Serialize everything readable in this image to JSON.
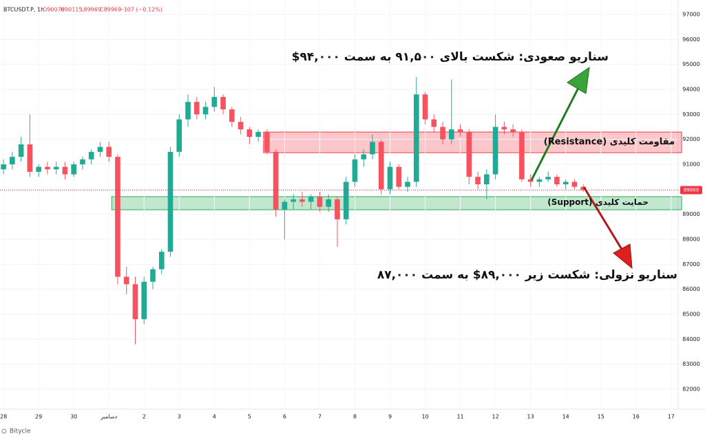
{
  "chart_data": {
    "type": "candlestick",
    "header": {
      "symbol": "BTCUSDT.P, 1h",
      "open": "O90076",
      "high": "H90115",
      "low": "L89969",
      "close": "C89969",
      "change": "−107 (−0.12%)"
    },
    "footer": "Bitycle",
    "x": [
      0,
      0.25,
      0.5,
      0.75,
      1,
      1.25,
      1.5,
      1.75,
      2,
      2.25,
      2.5,
      2.75,
      3,
      3.25,
      3.5,
      3.75,
      4,
      4.25,
      4.5,
      4.75,
      5,
      5.25,
      5.5,
      5.75,
      6,
      6.25,
      6.5,
      6.75,
      7,
      7.25,
      7.5,
      7.75,
      8,
      8.25,
      8.5,
      8.75,
      9,
      9.25,
      9.5,
      9.75,
      10,
      10.25,
      10.5,
      10.75,
      11,
      11.25,
      11.5,
      11.75,
      12,
      12.25,
      12.5,
      12.75,
      13,
      13.25,
      13.5,
      13.75,
      14,
      14.25,
      14.5,
      14.75,
      15,
      15.25,
      15.5,
      15.75,
      16,
      16.25,
      16.5
    ],
    "open": [
      90800,
      91000,
      91300,
      91800,
      90700,
      90900,
      90800,
      90900,
      90600,
      91000,
      91200,
      91500,
      91700,
      91300,
      86500,
      86200,
      84800,
      86300,
      86800,
      87500,
      91500,
      92800,
      93500,
      93000,
      93300,
      93700,
      93200,
      92700,
      92400,
      92100,
      92300,
      91500,
      89200,
      89500,
      89600,
      89500,
      89700,
      89300,
      89600,
      88800,
      90300,
      91200,
      91400,
      91900,
      90000,
      90900,
      90100,
      90300,
      93800,
      92800,
      92500,
      92000,
      92400,
      92300,
      90500,
      90200,
      90600,
      92500,
      92400,
      92300,
      90400,
      90300,
      90400,
      90500,
      90200,
      90300,
      90100
    ],
    "high": [
      91200,
      91500,
      92100,
      93000,
      91000,
      91100,
      91100,
      91100,
      91100,
      91300,
      91600,
      91900,
      91900,
      91400,
      86900,
      86500,
      86500,
      86900,
      87600,
      91700,
      93000,
      93800,
      93700,
      93500,
      94100,
      93800,
      93300,
      92900,
      92500,
      92400,
      92400,
      91600,
      89600,
      89800,
      89900,
      89800,
      89900,
      89800,
      89700,
      90500,
      91400,
      91600,
      92200,
      92000,
      91100,
      91000,
      90500,
      94500,
      93900,
      93000,
      92700,
      94400,
      92600,
      92400,
      90700,
      90800,
      93000,
      92700,
      92600,
      92400,
      90600,
      90500,
      90700,
      90600,
      90400,
      90400,
      90200
    ],
    "low": [
      90600,
      90800,
      91100,
      90500,
      90500,
      90600,
      90600,
      90400,
      90500,
      90800,
      91000,
      91300,
      91100,
      86200,
      85800,
      83800,
      84600,
      86000,
      86600,
      87300,
      91300,
      92500,
      92800,
      92800,
      93100,
      93000,
      92500,
      92200,
      91800,
      91900,
      91400,
      88900,
      88000,
      89200,
      89300,
      89200,
      89100,
      89100,
      87700,
      88600,
      90100,
      90900,
      91200,
      89800,
      89800,
      90000,
      89900,
      90100,
      92600,
      92300,
      91800,
      91800,
      92100,
      90200,
      90000,
      89600,
      90400,
      92200,
      92100,
      90300,
      90100,
      90100,
      90300,
      90100,
      90000,
      90000,
      89900
    ],
    "close": [
      91000,
      91300,
      91800,
      90700,
      90900,
      90800,
      90900,
      90600,
      91000,
      91200,
      91500,
      91700,
      91300,
      86500,
      86200,
      84800,
      86300,
      86800,
      87500,
      91500,
      92800,
      93500,
      93000,
      93300,
      93700,
      93200,
      92700,
      92400,
      92100,
      92300,
      91500,
      89200,
      89500,
      89600,
      89500,
      89700,
      89300,
      89600,
      88800,
      90300,
      91200,
      91400,
      91900,
      90000,
      90900,
      90100,
      90300,
      93800,
      92800,
      92500,
      92000,
      92400,
      92300,
      90500,
      90200,
      90600,
      92500,
      92400,
      92300,
      90400,
      90300,
      90400,
      90500,
      90200,
      90300,
      90100,
      89969
    ],
    "up_color": "#22ab94",
    "down_color": "#f7525f",
    "xlim": [
      -0.1,
      19.2
    ],
    "xticks": [
      {
        "value": 0,
        "label": "28"
      },
      {
        "value": 1,
        "label": "29"
      },
      {
        "value": 2,
        "label": "30"
      },
      {
        "value": 3,
        "label": "دسامبر"
      },
      {
        "value": 4,
        "label": "2"
      },
      {
        "value": 5,
        "label": "3"
      },
      {
        "value": 6,
        "label": "4"
      },
      {
        "value": 7,
        "label": "5"
      },
      {
        "value": 8,
        "label": "6"
      },
      {
        "value": 9,
        "label": "7"
      },
      {
        "value": 10,
        "label": "8"
      },
      {
        "value": 11,
        "label": "9"
      },
      {
        "value": 12,
        "label": "10"
      },
      {
        "value": 13,
        "label": "11"
      },
      {
        "value": 14,
        "label": "12"
      },
      {
        "value": 15,
        "label": "13"
      },
      {
        "value": 16,
        "label": "14"
      },
      {
        "value": 17,
        "label": "15"
      },
      {
        "value": 18,
        "label": "16"
      },
      {
        "value": 19,
        "label": "17"
      }
    ],
    "ylim": [
      81200,
      97580
    ],
    "yticks": [
      82000,
      83000,
      84000,
      85000,
      86000,
      87000,
      88000,
      89000,
      90000,
      91000,
      92000,
      93000,
      94000,
      95000,
      96000,
      97000
    ],
    "grid": true,
    "last_price": 89969,
    "last_price_color": "#f23645",
    "zones": [
      {
        "label": "مقاومت کلیدی (Resistance)",
        "from": 91467,
        "to": 92293,
        "x_start": 7.4,
        "color": "#f23645"
      },
      {
        "label": "حمایت کلیدی (Support)",
        "from": 89183,
        "to": 89706,
        "x_start": 3.08,
        "color": "#22ab4e"
      }
    ],
    "annotations": {
      "bullish": "سناریو صعودی: شکست بالای ۹۱,۵۰۰ به سمت ۹۴,۰۰۰$",
      "bearish": "سناریو نزولی: شکست زیر ۸۹,۰۰۰$ به سمت ۸۷,۰۰۰"
    }
  }
}
